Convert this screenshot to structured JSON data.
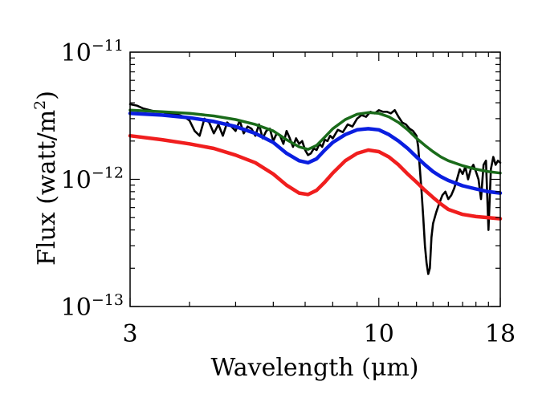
{
  "chart_data": {
    "type": "line",
    "xscale": "log",
    "yscale": "log",
    "xlim": [
      3,
      18
    ],
    "ylim": [
      1e-13,
      1e-11
    ],
    "xlabel": "Wavelength (μm)",
    "ylabel_main": "Flux (watt/m",
    "ylabel_sup": "2",
    "ylabel_close": ")",
    "x_ticks": [
      {
        "value": 3,
        "label": "3"
      },
      {
        "value": 10,
        "label": "10"
      },
      {
        "value": 18,
        "label": "18"
      }
    ],
    "y_ticks": [
      {
        "value": 1e-11,
        "base": "10",
        "exp": "−11"
      },
      {
        "value": 1e-12,
        "base": "10",
        "exp": "−12"
      },
      {
        "value": 1e-13,
        "base": "10",
        "exp": "−13"
      }
    ],
    "grid": false,
    "series": [
      {
        "color": "#000000",
        "width": 2.6,
        "noisy": true,
        "x": [
          3.0,
          3.1,
          3.2,
          3.3,
          3.4,
          3.5,
          3.6,
          3.7,
          3.8,
          3.9,
          4.0,
          4.1,
          4.2,
          4.3,
          4.4,
          4.5,
          4.6,
          4.7,
          4.8,
          4.9,
          5.0,
          5.1,
          5.2,
          5.3,
          5.4,
          5.5,
          5.6,
          5.7,
          5.8,
          5.9,
          6.0,
          6.1,
          6.2,
          6.3,
          6.4,
          6.5,
          6.6,
          6.7,
          6.8,
          6.9,
          7.0,
          7.1,
          7.2,
          7.3,
          7.4,
          7.5,
          7.6,
          7.7,
          7.8,
          7.9,
          8.0,
          8.2,
          8.4,
          8.6,
          8.8,
          9.0,
          9.2,
          9.4,
          9.6,
          9.8,
          10.0,
          10.2,
          10.4,
          10.6,
          10.8,
          11.0,
          11.2,
          11.4,
          11.6,
          11.8,
          12.0,
          12.1,
          12.2,
          12.3,
          12.4,
          12.5,
          12.6,
          12.7,
          12.8,
          12.9,
          13.0,
          13.2,
          13.4,
          13.6,
          13.8,
          14.0,
          14.2,
          14.4,
          14.6,
          14.8,
          15.0,
          15.2,
          15.4,
          15.6,
          15.8,
          16.0,
          16.2,
          16.4,
          16.6,
          16.8,
          17.0,
          17.2,
          17.4,
          17.6,
          17.8,
          18.0
        ],
        "y": [
          3.9e-12,
          3.8e-12,
          3.6e-12,
          3.5e-12,
          3.4e-12,
          3.4e-12,
          3.3e-12,
          3.3e-12,
          3.2e-12,
          3.1e-12,
          2.9e-12,
          2.4e-12,
          2.2e-12,
          3e-12,
          2.8e-12,
          2.3e-12,
          2.7e-12,
          2.2e-12,
          2.8e-12,
          2.6e-12,
          2.4e-12,
          2.9e-12,
          2.3e-12,
          2.6e-12,
          2.5e-12,
          2.2e-12,
          2.7e-12,
          2.1e-12,
          2.4e-12,
          2.5e-12,
          2e-12,
          2.3e-12,
          2.2e-12,
          1.9e-12,
          2.4e-12,
          2.1e-12,
          1.8e-12,
          2.1e-12,
          1.9e-12,
          2e-12,
          1.7e-12,
          1.55e-12,
          1.6e-12,
          1.75e-12,
          1.7e-12,
          1.9e-12,
          1.8e-12,
          2.05e-12,
          2e-12,
          2.2e-12,
          2.1e-12,
          2.45e-12,
          2.35e-12,
          2.7e-12,
          2.6e-12,
          3e-12,
          3.2e-12,
          3.1e-12,
          3.4e-12,
          3.3e-12,
          3.5e-12,
          3.4e-12,
          3.4e-12,
          3.3e-12,
          3.5e-12,
          3.1e-12,
          2.8e-12,
          2.7e-12,
          2.5e-12,
          2.4e-12,
          2.2e-12,
          1.8e-12,
          1.2e-12,
          8e-13,
          5e-13,
          3e-13,
          2.2e-13,
          1.8e-13,
          2e-13,
          3.5e-13,
          4.5e-13,
          5.5e-13,
          6.5e-13,
          7.5e-13,
          8e-13,
          7e-13,
          7.5e-13,
          8.5e-13,
          1e-12,
          1.2e-12,
          1.1e-12,
          1.25e-12,
          1e-12,
          1.2e-12,
          1.3e-12,
          1.15e-12,
          1e-12,
          7e-13,
          1.3e-12,
          1.4e-12,
          4e-13,
          1.2e-12,
          1.5e-12,
          1.3e-12,
          1.4e-12,
          1.35e-12
        ]
      },
      {
        "color": "#1a6b1a",
        "width": 3.5,
        "x": [
          3.0,
          3.5,
          4.0,
          4.5,
          5.0,
          5.5,
          6.0,
          6.4,
          6.8,
          7.1,
          7.4,
          7.7,
          8.0,
          8.5,
          9.0,
          9.5,
          10.0,
          10.5,
          11.0,
          11.5,
          12.0,
          12.5,
          13.0,
          13.5,
          14.0,
          15.0,
          16.0,
          17.0,
          18.0
        ],
        "y": [
          3.5e-12,
          3.4e-12,
          3.3e-12,
          3.15e-12,
          2.95e-12,
          2.7e-12,
          2.4e-12,
          2.05e-12,
          1.8e-12,
          1.72e-12,
          1.85e-12,
          2.15e-12,
          2.5e-12,
          2.95e-12,
          3.25e-12,
          3.35e-12,
          3.3e-12,
          3.1e-12,
          2.8e-12,
          2.45e-12,
          2.1e-12,
          1.85e-12,
          1.65e-12,
          1.5e-12,
          1.4e-12,
          1.28e-12,
          1.2e-12,
          1.15e-12,
          1.12e-12
        ]
      },
      {
        "color": "#0a1ee0",
        "width": 4.5,
        "x": [
          3.0,
          3.5,
          4.0,
          4.5,
          5.0,
          5.5,
          6.0,
          6.4,
          6.8,
          7.1,
          7.4,
          7.7,
          8.0,
          8.5,
          9.0,
          9.5,
          10.0,
          10.5,
          11.0,
          11.5,
          12.0,
          12.5,
          13.0,
          13.5,
          14.0,
          15.0,
          16.0,
          17.0,
          18.0
        ],
        "y": [
          3.3e-12,
          3.2e-12,
          3.05e-12,
          2.85e-12,
          2.6e-12,
          2.3e-12,
          1.95e-12,
          1.6e-12,
          1.4e-12,
          1.35e-12,
          1.45e-12,
          1.7e-12,
          1.95e-12,
          2.25e-12,
          2.45e-12,
          2.5e-12,
          2.45e-12,
          2.25e-12,
          2e-12,
          1.75e-12,
          1.5e-12,
          1.3e-12,
          1.15e-12,
          1.05e-12,
          9.8e-13,
          8.9e-13,
          8.4e-13,
          8e-13,
          7.8e-13
        ]
      },
      {
        "color": "#f01e1e",
        "width": 4.5,
        "x": [
          3.0,
          3.5,
          4.0,
          4.5,
          5.0,
          5.5,
          6.0,
          6.4,
          6.8,
          7.1,
          7.4,
          7.7,
          8.0,
          8.5,
          9.0,
          9.5,
          10.0,
          10.5,
          11.0,
          11.5,
          12.0,
          12.5,
          13.0,
          13.5,
          14.0,
          15.0,
          16.0,
          17.0,
          18.0
        ],
        "y": [
          2.2e-12,
          2.05e-12,
          1.9e-12,
          1.75e-12,
          1.55e-12,
          1.35e-12,
          1.1e-12,
          9e-13,
          7.8e-13,
          7.6e-13,
          8.2e-13,
          9.5e-13,
          1.12e-12,
          1.4e-12,
          1.6e-12,
          1.7e-12,
          1.65e-12,
          1.5e-12,
          1.3e-12,
          1.1e-12,
          9.5e-13,
          8.2e-13,
          7.2e-13,
          6.4e-13,
          5.8e-13,
          5.3e-13,
          5.1e-13,
          5e-13,
          4.9e-13
        ]
      }
    ]
  }
}
